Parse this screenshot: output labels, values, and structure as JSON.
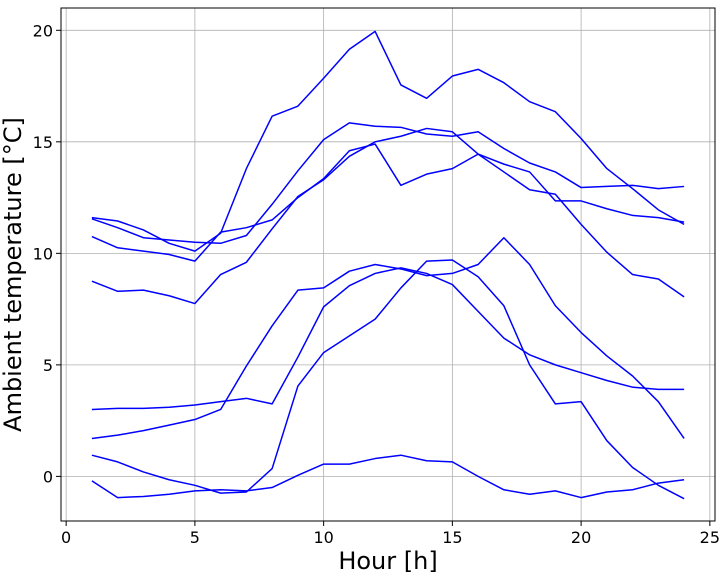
{
  "chart_data": {
    "type": "line",
    "xlabel": "Hour [h]",
    "ylabel": "Ambient temperature [°C]",
    "xlim": [
      -0.2,
      25.2
    ],
    "ylim": [
      -2.0,
      21.0
    ],
    "xticks": [
      0,
      5,
      10,
      15,
      20,
      25
    ],
    "yticks": [
      0,
      5,
      10,
      15,
      20
    ],
    "grid": true,
    "line_color": "#0000ff",
    "x": [
      1,
      2,
      3,
      4,
      5,
      6,
      7,
      8,
      9,
      10,
      11,
      12,
      13,
      14,
      15,
      16,
      17,
      18,
      19,
      20,
      21,
      22,
      23,
      24
    ],
    "series": [
      {
        "values": [
          11.6,
          11.45,
          11.05,
          10.45,
          10.1,
          10.9,
          13.8,
          16.15,
          16.6,
          17.85,
          19.15,
          19.95,
          17.55,
          16.95,
          17.95,
          18.25,
          17.65,
          16.8,
          16.35,
          15.15,
          13.8,
          12.9,
          11.95,
          11.3
        ]
      },
      {
        "values": [
          11.55,
          11.15,
          10.7,
          10.6,
          10.5,
          10.45,
          10.8,
          12.2,
          13.7,
          15.1,
          15.85,
          15.7,
          15.65,
          15.35,
          15.25,
          15.45,
          14.7,
          14.05,
          13.65,
          12.95,
          13.0,
          13.05,
          12.9,
          13.0
        ]
      },
      {
        "values": [
          10.75,
          10.25,
          10.1,
          9.95,
          9.65,
          10.95,
          11.15,
          11.5,
          12.5,
          13.35,
          14.6,
          14.9,
          13.05,
          13.55,
          13.8,
          14.45,
          14.0,
          13.65,
          12.35,
          12.35,
          12.0,
          11.7,
          11.6,
          11.4
        ]
      },
      {
        "values": [
          8.75,
          8.3,
          8.35,
          8.1,
          7.75,
          9.05,
          9.6,
          11.1,
          12.55,
          13.3,
          14.35,
          15.0,
          15.25,
          15.6,
          15.45,
          14.45,
          13.65,
          12.85,
          12.65,
          11.3,
          10.05,
          9.05,
          8.85,
          8.05
        ]
      },
      {
        "values": [
          3.0,
          3.05,
          3.05,
          3.1,
          3.2,
          3.35,
          3.5,
          3.25,
          5.35,
          7.6,
          8.55,
          9.1,
          9.35,
          9.1,
          8.6,
          7.4,
          6.2,
          5.45,
          5.0,
          4.65,
          4.3,
          4.0,
          3.9,
          3.9
        ]
      },
      {
        "values": [
          1.7,
          1.85,
          2.05,
          2.3,
          2.55,
          3.0,
          4.95,
          6.75,
          8.35,
          8.45,
          9.2,
          9.5,
          9.3,
          9.0,
          9.1,
          9.5,
          10.7,
          9.5,
          7.65,
          6.45,
          5.4,
          4.5,
          3.35,
          1.7
        ]
      },
      {
        "values": [
          0.95,
          0.65,
          0.2,
          -0.15,
          -0.4,
          -0.75,
          -0.7,
          0.35,
          4.05,
          5.55,
          6.3,
          7.05,
          8.45,
          9.65,
          9.7,
          8.95,
          7.65,
          5.0,
          3.25,
          3.35,
          1.6,
          0.4,
          -0.4,
          -1.0
        ]
      },
      {
        "values": [
          -0.2,
          -0.95,
          -0.9,
          -0.8,
          -0.65,
          -0.6,
          -0.65,
          -0.5,
          0.05,
          0.55,
          0.55,
          0.8,
          0.95,
          0.7,
          0.65,
          0.0,
          -0.6,
          -0.8,
          -0.65,
          -0.95,
          -0.7,
          -0.6,
          -0.3,
          -0.15
        ]
      }
    ]
  }
}
